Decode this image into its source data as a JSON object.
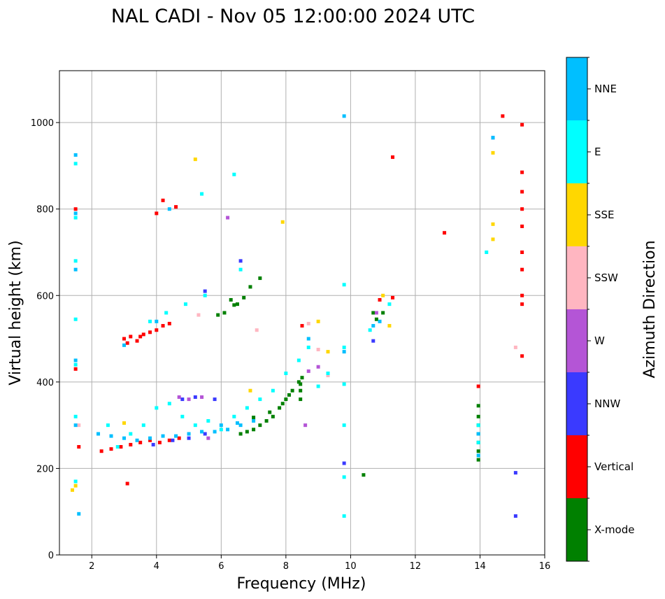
{
  "chart_data": {
    "type": "scatter",
    "title": "NAL CADI - Nov 05 12:00:00 2024 UTC",
    "xlabel": "Frequency (MHz)",
    "ylabel": "Virtual height (km)",
    "xlim": [
      1,
      16
    ],
    "ylim": [
      0,
      1120
    ],
    "xticks": [
      2,
      4,
      6,
      8,
      10,
      12,
      14,
      16
    ],
    "yticks": [
      0,
      200,
      400,
      600,
      800,
      1000
    ],
    "grid": true,
    "colorbar": {
      "label": "Azimuth Direction",
      "categories": [
        {
          "name": "X-mode",
          "color": "#008000"
        },
        {
          "name": "Vertical",
          "color": "#ff0000"
        },
        {
          "name": "NNW",
          "color": "#3a3aff"
        },
        {
          "name": "W",
          "color": "#b455d6"
        },
        {
          "name": "SSW",
          "color": "#ffb6c1"
        },
        {
          "name": "SSE",
          "color": "#ffd700"
        },
        {
          "name": "E",
          "color": "#00ffff"
        },
        {
          "name": "NNE",
          "color": "#00bfff"
        }
      ]
    },
    "series": [
      {
        "name": "X-mode",
        "points": [
          [
            6.3,
            590
          ],
          [
            6.5,
            580
          ],
          [
            6.7,
            595
          ],
          [
            6.9,
            620
          ],
          [
            7.2,
            640
          ],
          [
            6.1,
            560
          ],
          [
            5.9,
            555
          ],
          [
            7.0,
            290
          ],
          [
            7.2,
            300
          ],
          [
            7.4,
            310
          ],
          [
            7.6,
            320
          ],
          [
            7.8,
            340
          ],
          [
            8.0,
            360
          ],
          [
            8.2,
            380
          ],
          [
            8.4,
            400
          ],
          [
            8.5,
            410
          ],
          [
            6.8,
            285
          ],
          [
            6.6,
            280
          ],
          [
            7.5,
            330
          ],
          [
            7.9,
            350
          ],
          [
            8.1,
            370
          ],
          [
            8.45,
            360
          ],
          [
            8.45,
            380
          ],
          [
            8.45,
            395
          ],
          [
            13.95,
            220
          ],
          [
            13.95,
            240
          ],
          [
            13.95,
            260
          ],
          [
            13.95,
            280
          ],
          [
            13.95,
            300
          ],
          [
            13.95,
            320
          ],
          [
            13.95,
            345
          ],
          [
            10.4,
            185
          ],
          [
            10.7,
            560
          ],
          [
            10.8,
            545
          ],
          [
            11.0,
            560
          ],
          [
            6.4,
            578
          ],
          [
            7.0,
            318
          ]
        ]
      },
      {
        "name": "Vertical",
        "points": [
          [
            3.0,
            500
          ],
          [
            3.2,
            505
          ],
          [
            3.4,
            495
          ],
          [
            3.6,
            510
          ],
          [
            3.8,
            515
          ],
          [
            4.0,
            520
          ],
          [
            4.2,
            530
          ],
          [
            4.4,
            535
          ],
          [
            3.1,
            490
          ],
          [
            3.5,
            505
          ],
          [
            2.3,
            240
          ],
          [
            2.6,
            245
          ],
          [
            2.9,
            250
          ],
          [
            3.2,
            255
          ],
          [
            3.5,
            260
          ],
          [
            3.8,
            265
          ],
          [
            4.1,
            260
          ],
          [
            4.4,
            265
          ],
          [
            4.7,
            270
          ],
          [
            1.5,
            800
          ],
          [
            1.5,
            430
          ],
          [
            1.6,
            250
          ],
          [
            4.0,
            790
          ],
          [
            4.2,
            820
          ],
          [
            11.3,
            920
          ],
          [
            12.9,
            745
          ],
          [
            15.3,
            995
          ],
          [
            15.3,
            885
          ],
          [
            15.3,
            840
          ],
          [
            15.3,
            800
          ],
          [
            15.3,
            760
          ],
          [
            15.3,
            700
          ],
          [
            15.3,
            660
          ],
          [
            15.3,
            600
          ],
          [
            15.3,
            580
          ],
          [
            15.3,
            460
          ],
          [
            14.7,
            1015
          ],
          [
            13.95,
            390
          ],
          [
            8.5,
            530
          ],
          [
            10.9,
            590
          ],
          [
            11.3,
            595
          ],
          [
            3.1,
            165
          ],
          [
            4.6,
            805
          ]
        ]
      },
      {
        "name": "NNW",
        "points": [
          [
            4.5,
            265
          ],
          [
            5.0,
            270
          ],
          [
            5.5,
            280
          ],
          [
            4.8,
            360
          ],
          [
            5.2,
            365
          ],
          [
            5.8,
            360
          ],
          [
            6.6,
            680
          ],
          [
            10.7,
            495
          ],
          [
            14.4,
            965
          ],
          [
            15.1,
            190
          ],
          [
            15.1,
            90
          ],
          [
            9.8,
            212
          ],
          [
            5.5,
            610
          ],
          [
            3.9,
            255
          ]
        ]
      },
      {
        "name": "W",
        "points": [
          [
            4.7,
            365
          ],
          [
            5.0,
            360
          ],
          [
            5.4,
            365
          ],
          [
            6.2,
            780
          ],
          [
            9.0,
            435
          ],
          [
            8.7,
            425
          ],
          [
            10.8,
            560
          ],
          [
            5.6,
            270
          ],
          [
            8.6,
            300
          ]
        ]
      },
      {
        "name": "SSW",
        "points": [
          [
            8.7,
            535
          ],
          [
            9.0,
            475
          ],
          [
            9.3,
            415
          ],
          [
            15.1,
            480
          ],
          [
            5.3,
            555
          ],
          [
            7.1,
            520
          ],
          [
            1.6,
            300
          ]
        ]
      },
      {
        "name": "SSE",
        "points": [
          [
            1.4,
            150
          ],
          [
            1.5,
            160
          ],
          [
            5.2,
            915
          ],
          [
            7.9,
            770
          ],
          [
            14.4,
            930
          ],
          [
            14.4,
            730
          ],
          [
            14.4,
            765
          ],
          [
            9.0,
            540
          ],
          [
            9.3,
            470
          ],
          [
            11.0,
            600
          ],
          [
            11.2,
            530
          ],
          [
            3.0,
            305
          ],
          [
            6.9,
            380
          ]
        ]
      },
      {
        "name": "E",
        "points": [
          [
            1.5,
            905
          ],
          [
            1.5,
            780
          ],
          [
            1.5,
            680
          ],
          [
            1.5,
            545
          ],
          [
            1.5,
            440
          ],
          [
            1.5,
            320
          ],
          [
            1.5,
            170
          ],
          [
            2.5,
            300
          ],
          [
            2.8,
            250
          ],
          [
            3.2,
            280
          ],
          [
            3.6,
            300
          ],
          [
            4.0,
            340
          ],
          [
            4.4,
            350
          ],
          [
            4.8,
            320
          ],
          [
            5.2,
            300
          ],
          [
            5.6,
            310
          ],
          [
            6.0,
            290
          ],
          [
            6.4,
            320
          ],
          [
            6.8,
            340
          ],
          [
            7.2,
            360
          ],
          [
            7.6,
            380
          ],
          [
            8.0,
            420
          ],
          [
            8.4,
            450
          ],
          [
            8.7,
            480
          ],
          [
            9.0,
            390
          ],
          [
            9.3,
            420
          ],
          [
            9.8,
            480
          ],
          [
            9.8,
            300
          ],
          [
            9.8,
            180
          ],
          [
            9.8,
            90
          ],
          [
            6.4,
            880
          ],
          [
            5.4,
            835
          ],
          [
            14.2,
            700
          ],
          [
            10.6,
            520
          ],
          [
            11.2,
            580
          ],
          [
            3.8,
            540
          ],
          [
            4.3,
            560
          ],
          [
            4.9,
            580
          ],
          [
            5.5,
            600
          ],
          [
            6.6,
            660
          ],
          [
            9.8,
            625
          ],
          [
            9.8,
            395
          ],
          [
            13.95,
            260
          ],
          [
            13.95,
            300
          ]
        ]
      },
      {
        "name": "NNE",
        "points": [
          [
            1.5,
            925
          ],
          [
            1.5,
            790
          ],
          [
            1.5,
            660
          ],
          [
            1.5,
            450
          ],
          [
            1.5,
            300
          ],
          [
            1.6,
            95
          ],
          [
            2.2,
            280
          ],
          [
            2.6,
            275
          ],
          [
            3.0,
            270
          ],
          [
            3.4,
            265
          ],
          [
            3.8,
            270
          ],
          [
            4.2,
            275
          ],
          [
            4.6,
            275
          ],
          [
            5.0,
            280
          ],
          [
            5.4,
            285
          ],
          [
            5.8,
            285
          ],
          [
            6.2,
            290
          ],
          [
            6.6,
            300
          ],
          [
            7.0,
            310
          ],
          [
            9.8,
            1015
          ],
          [
            10.7,
            530
          ],
          [
            10.9,
            540
          ],
          [
            8.7,
            500
          ],
          [
            9.8,
            470
          ],
          [
            14.4,
            965
          ],
          [
            4.4,
            800
          ],
          [
            3.0,
            485
          ],
          [
            4.0,
            540
          ],
          [
            6.0,
            300
          ],
          [
            6.5,
            305
          ],
          [
            13.95,
            230
          ],
          [
            13.95,
            280
          ]
        ]
      }
    ]
  }
}
